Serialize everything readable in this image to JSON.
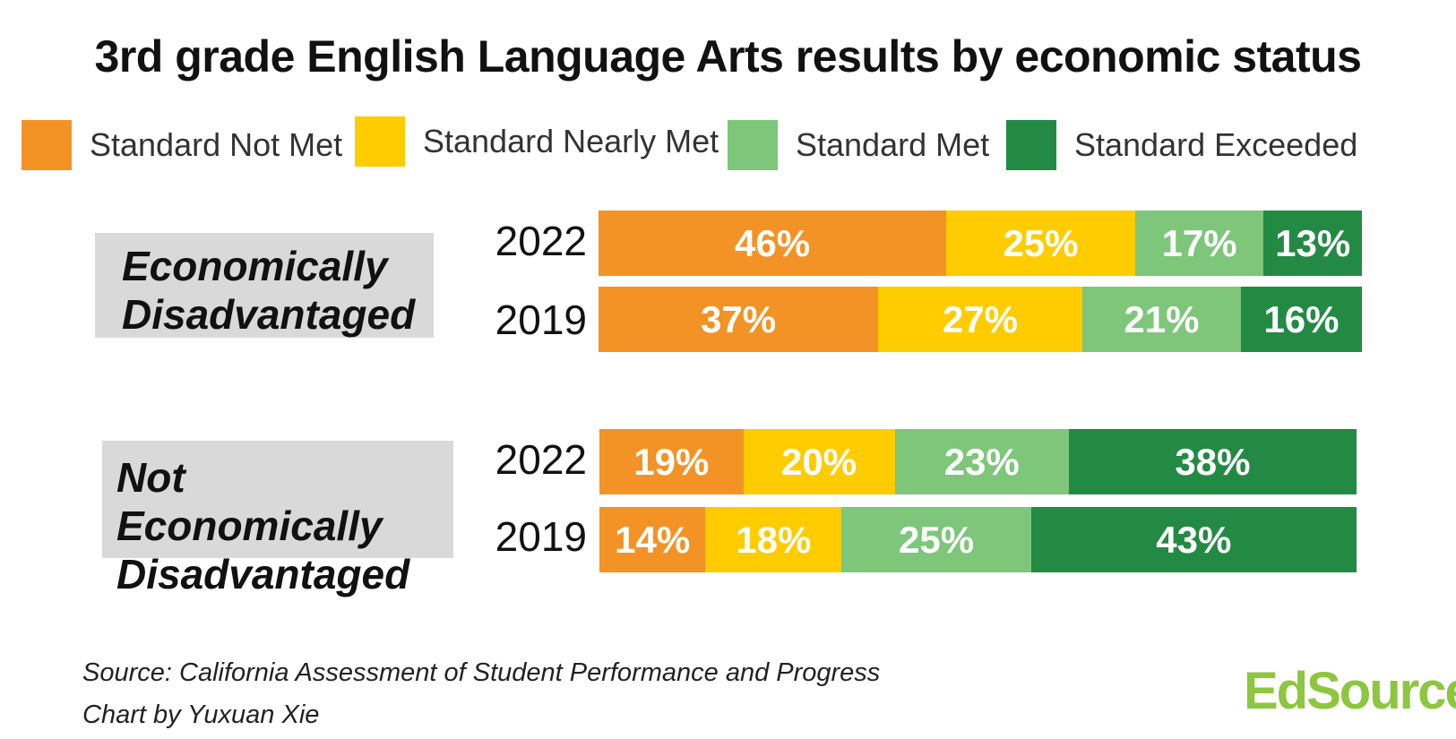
{
  "chart_data": {
    "type": "bar",
    "orientation": "horizontal",
    "stacked": true,
    "title": "3rd grade English Language Arts results by economic status",
    "legend_position": "top",
    "series": [
      {
        "name": "Standard Not Met",
        "color": "#f39325"
      },
      {
        "name": "Standard Nearly Met",
        "color": "#ffcc00"
      },
      {
        "name": "Standard Met",
        "color": "#7dc67a"
      },
      {
        "name": "Standard Exceeded",
        "color": "#238a44"
      }
    ],
    "groups": [
      {
        "label_lines": [
          "Economically",
          "Disadvantaged"
        ],
        "rows": [
          {
            "year": "2022",
            "values": [
              46,
              25,
              17,
              13
            ],
            "labels": [
              "46%",
              "25%",
              "17%",
              "13%"
            ]
          },
          {
            "year": "2019",
            "values": [
              37,
              27,
              21,
              16
            ],
            "labels": [
              "37%",
              "27%",
              "21%",
              "16%"
            ]
          }
        ]
      },
      {
        "label_lines": [
          "Not Economically",
          "Disadvantaged"
        ],
        "rows": [
          {
            "year": "2022",
            "values": [
              19,
              20,
              23,
              38
            ],
            "labels": [
              "19%",
              "20%",
              "23%",
              "38%"
            ]
          },
          {
            "year": "2019",
            "values": [
              14,
              18,
              25,
              43
            ],
            "labels": [
              "14%",
              "18%",
              "25%",
              "43%"
            ]
          }
        ]
      }
    ]
  },
  "source_line": "Source: California Assessment of Student Performance and Progress",
  "credit_line": "Chart by Yuxuan Xie",
  "logo_text": "EdSource",
  "logo_color": "#8dc63f"
}
